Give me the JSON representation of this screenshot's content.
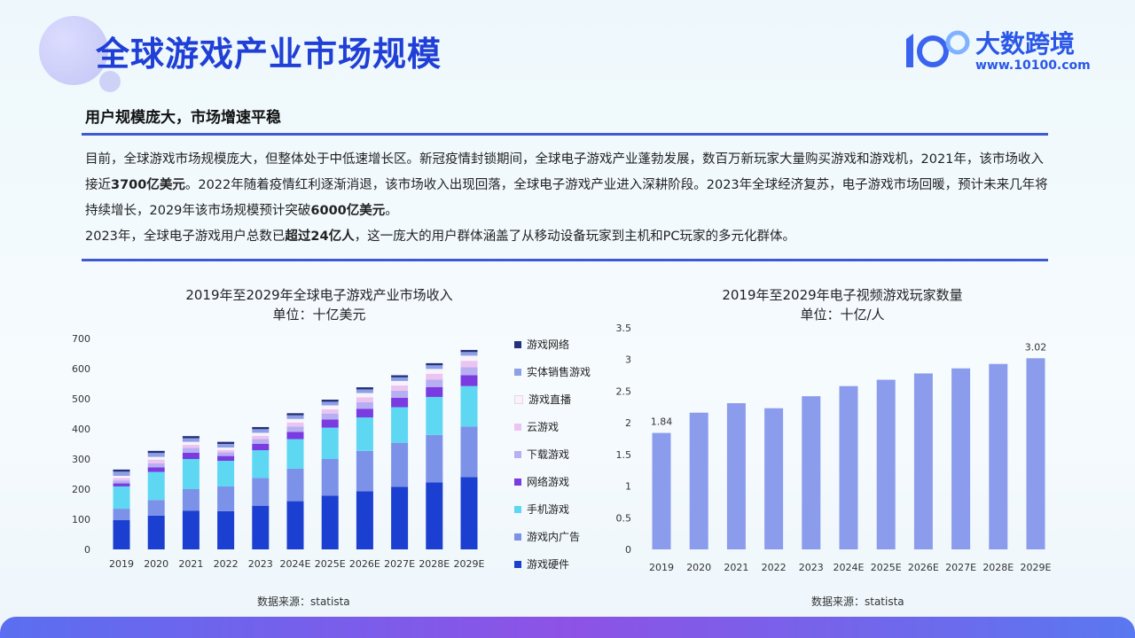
{
  "header": {
    "title": "全球游戏产业市场规模",
    "logo_text": "大数跨境",
    "logo_url": "www.10100.com"
  },
  "subtitle": "用户规模庞大，市场增速平稳",
  "paragraph": {
    "p1_a": "目前，全球游戏市场规模庞大，但整体处于中低速增长区。新冠疫情封锁期间，全球电子游戏产业蓬勃发展，数百万新玩家大量购买游戏和游戏机，2021年，该市场收入接近",
    "p1_b": "3700亿美元",
    "p1_c": "。2022年随着疫情红利逐渐消退，该市场收入出现回落，全球电子游戏产业进入深耕阶段。2023年全球经济复苏，电子游戏市场回暖，预计未来几年将持续增长，2029年该市场规模预计突破",
    "p1_d": "6000亿美元",
    "p1_e": "。",
    "p2_a": "2023年，全球电子游戏用户总数已",
    "p2_b": "超过24亿人",
    "p2_c": "，这一庞大的用户群体涵盖了从移动设备玩家到主机和PC玩家的多元化群体。"
  },
  "chart_data": [
    {
      "type": "bar",
      "stacked": true,
      "title": "2019年至2029年全球电子游戏产业市场收入",
      "subtitle": "单位：十亿美元",
      "source": "数据来源：statista",
      "categories": [
        "2019",
        "2020",
        "2021",
        "2022",
        "2023",
        "2024E",
        "2025E",
        "2026E",
        "2027E",
        "2028E",
        "2029E"
      ],
      "ylim": [
        0,
        700
      ],
      "yticks": [
        "0",
        "100",
        "200",
        "300",
        "400",
        "500",
        "600",
        "700"
      ],
      "legend_position": "right",
      "series": [
        {
          "name": "游戏硬件",
          "color": "#1b3fd0",
          "values": [
            97,
            112,
            128,
            127,
            145,
            160,
            178,
            193,
            208,
            222,
            240
          ]
        },
        {
          "name": "游戏内广告",
          "color": "#7c92e8",
          "values": [
            38,
            52,
            72,
            82,
            92,
            108,
            122,
            134,
            146,
            158,
            168
          ]
        },
        {
          "name": "手机游戏",
          "color": "#5ed7f2",
          "values": [
            74,
            93,
            100,
            85,
            92,
            98,
            104,
            111,
            118,
            126,
            134
          ]
        },
        {
          "name": "网络游戏",
          "color": "#7a3ce0",
          "values": [
            10,
            15,
            21,
            16,
            21,
            24,
            27,
            29,
            31,
            33,
            36
          ]
        },
        {
          "name": "下载游戏",
          "color": "#b8aef2",
          "values": [
            10,
            14,
            16,
            12,
            16,
            18,
            20,
            22,
            24,
            25,
            27
          ]
        },
        {
          "name": "云游戏",
          "color": "#ecc4f2",
          "values": [
            8,
            12,
            10,
            8,
            11,
            13,
            14,
            16,
            17,
            19,
            21
          ]
        },
        {
          "name": "游戏直播",
          "color": "#f8f2fb",
          "values": [
            7,
            9,
            10,
            8,
            10,
            12,
            13,
            14,
            15,
            16,
            17
          ]
        },
        {
          "name": "实体销售游戏",
          "color": "#8da0e6",
          "values": [
            14,
            13,
            12,
            12,
            12,
            12,
            12,
            12,
            12,
            12,
            12
          ]
        },
        {
          "name": "游戏网络",
          "color": "#24307a",
          "values": [
            7,
            7,
            7,
            7,
            7,
            7,
            7,
            7,
            7,
            7,
            7
          ]
        }
      ]
    },
    {
      "type": "bar",
      "title": "2019年至2029年电子视频游戏玩家数量",
      "subtitle": "单位：十亿/人",
      "source": "数据来源：statista",
      "categories": [
        "2019",
        "2020",
        "2021",
        "2022",
        "2023",
        "2024E",
        "2025E",
        "2026E",
        "2027E",
        "2028E",
        "2029E"
      ],
      "values": [
        1.84,
        2.16,
        2.31,
        2.23,
        2.42,
        2.58,
        2.68,
        2.78,
        2.86,
        2.93,
        3.02
      ],
      "data_labels": [
        "1.84",
        "",
        "",
        "",
        "",
        "",
        "",
        "",
        "",
        "",
        "3.02"
      ],
      "ylim": [
        0,
        3.5
      ],
      "yticks": [
        "0",
        "0.5",
        "1",
        "1.5",
        "2",
        "2.5",
        "3",
        "3.5"
      ],
      "color": "#8c9cec"
    }
  ]
}
